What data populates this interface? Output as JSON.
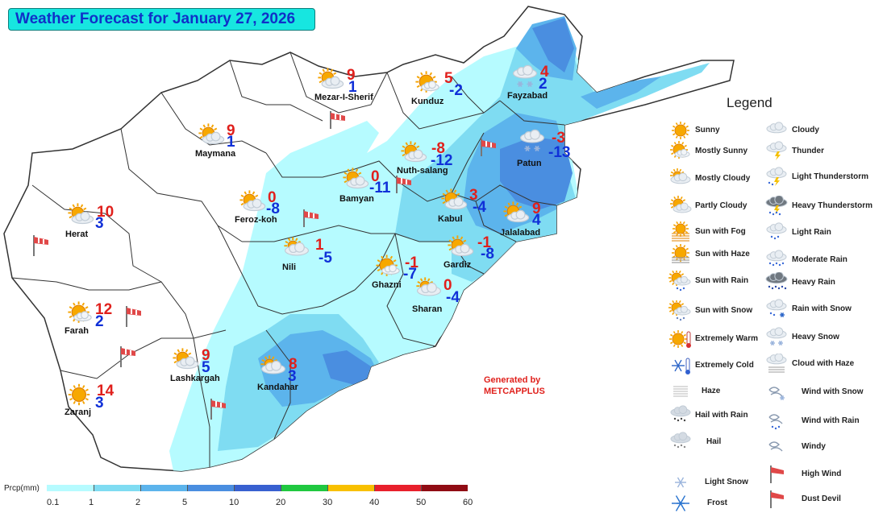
{
  "title": "Weather Forecast for January 27, 2026",
  "generated_by": [
    "Generated by",
    "METCAPPLUS"
  ],
  "legend": {
    "title": "Legend",
    "items": [
      {
        "label": "Sunny",
        "icon": "sunny-icon"
      },
      {
        "label": "Mostly Sunny",
        "icon": "mostly-sunny-icon"
      },
      {
        "label": "Mostly Cloudy",
        "icon": "mostly-cloudy-icon"
      },
      {
        "label": "Partly Cloudy",
        "icon": "partly-cloudy-icon"
      },
      {
        "label": "Sun with Fog",
        "icon": "sun-with-fog-icon"
      },
      {
        "label": "Sun with Haze",
        "icon": "sun-with-haze-icon"
      },
      {
        "label": "Sun with Rain",
        "icon": "sun-with-rain-icon"
      },
      {
        "label": "Sun with Snow",
        "icon": "sun-with-snow-icon"
      },
      {
        "label": "Extremely Warm",
        "icon": "extremely-warm-icon"
      },
      {
        "label": "Extremely Cold",
        "icon": "extremely-cold-icon"
      },
      {
        "label": "Haze",
        "icon": "haze-icon"
      },
      {
        "label": "Hail with Rain",
        "icon": "hail-with-rain-icon"
      },
      {
        "label": "Hail",
        "icon": "hail-icon"
      },
      {
        "label": "Light Snow",
        "icon": "light-snow-icon"
      },
      {
        "label": "Frost",
        "icon": "frost-icon"
      },
      {
        "label": "Cloudy",
        "icon": "cloudy-icon"
      },
      {
        "label": "Thunder",
        "icon": "thunder-icon"
      },
      {
        "label": "Light Thunderstorm",
        "icon": "light-thunderstorm-icon"
      },
      {
        "label": "Heavy Thunderstorm",
        "icon": "heavy-thunderstorm-icon"
      },
      {
        "label": "Light Rain",
        "icon": "light-rain-icon"
      },
      {
        "label": "Moderate Rain",
        "icon": "moderate-rain-icon"
      },
      {
        "label": "Heavy Rain",
        "icon": "heavy-rain-icon"
      },
      {
        "label": "Rain with Snow",
        "icon": "rain-with-snow-icon"
      },
      {
        "label": "Heavy Snow",
        "icon": "heavy-snow-icon"
      },
      {
        "label": "Cloud with Haze",
        "icon": "cloud-with-haze-icon"
      },
      {
        "label": "Wind with Snow",
        "icon": "wind-with-snow-icon"
      },
      {
        "label": "Wind with Rain",
        "icon": "wind-with-rain-icon"
      },
      {
        "label": "Windy",
        "icon": "windy-icon"
      },
      {
        "label": "High Wind",
        "icon": "high-wind-icon"
      },
      {
        "label": "Dust Devil",
        "icon": "dust-devil-icon"
      }
    ]
  },
  "colorbar": {
    "label": "Prcp(mm)",
    "ticks": [
      "0.1",
      "1",
      "2",
      "5",
      "10",
      "20",
      "30",
      "40",
      "50",
      "60"
    ],
    "colors": [
      "#b6fbff",
      "#7fdcf2",
      "#5cb4ec",
      "#4a8ee0",
      "#3860d0",
      "#20c840",
      "#f8c000",
      "#e8202c",
      "#900c14"
    ]
  },
  "cities": [
    {
      "name": "Mezar-I-Sherif",
      "max": "9",
      "min": "1",
      "icon": "partly-cloudy-icon"
    },
    {
      "name": "Kunduz",
      "max": "5",
      "min": "-2",
      "icon": "mostly-sunny-icon"
    },
    {
      "name": "Fayzabad",
      "max": "4",
      "min": "2",
      "icon": "heavy-snow-icon"
    },
    {
      "name": "Maymana",
      "max": "9",
      "min": "1",
      "icon": "partly-cloudy-icon"
    },
    {
      "name": "Nuth-salang",
      "max": "-8",
      "min": "-12",
      "icon": "partly-cloudy-icon"
    },
    {
      "name": "Patun",
      "max": "-3",
      "min": "-13",
      "icon": "heavy-snow-icon"
    },
    {
      "name": "Bamyan",
      "max": "0",
      "min": "-11",
      "icon": "partly-cloudy-icon"
    },
    {
      "name": "Feroz-koh",
      "max": "0",
      "min": "-8",
      "icon": "partly-cloudy-icon"
    },
    {
      "name": "Kabul",
      "max": "3",
      "min": "-4",
      "icon": "partly-cloudy-icon"
    },
    {
      "name": "Jalalabad",
      "max": "9",
      "min": "4",
      "icon": "partly-cloudy-icon"
    },
    {
      "name": "Herat",
      "max": "10",
      "min": "3",
      "icon": "partly-cloudy-icon"
    },
    {
      "name": "Nili",
      "max": "1",
      "min": "-5",
      "icon": "mostly-cloudy-icon"
    },
    {
      "name": "Gardiz",
      "max": "-1",
      "min": "-8",
      "icon": "partly-cloudy-icon"
    },
    {
      "name": "Ghazni",
      "max": "-1",
      "min": "-7",
      "icon": "mostly-sunny-icon"
    },
    {
      "name": "Sharan",
      "max": "0",
      "min": "-4",
      "icon": "mostly-cloudy-icon"
    },
    {
      "name": "Farah",
      "max": "12",
      "min": "2",
      "icon": "mostly-sunny-icon"
    },
    {
      "name": "Lashkargah",
      "max": "9",
      "min": "5",
      "icon": "partly-cloudy-icon"
    },
    {
      "name": "Kandahar",
      "max": "8",
      "min": "3",
      "icon": "mostly-cloudy-icon"
    },
    {
      "name": "Zaranj",
      "max": "14",
      "min": "3",
      "icon": "sunny-icon"
    }
  ]
}
